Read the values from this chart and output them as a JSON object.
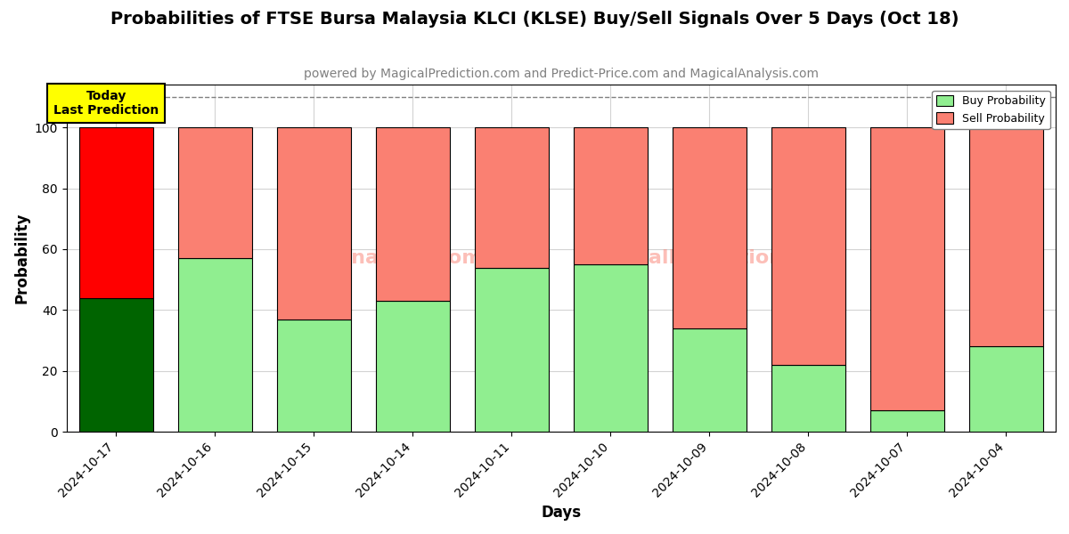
{
  "title": "Probabilities of FTSE Bursa Malaysia KLCI (KLSE) Buy/Sell Signals Over 5 Days (Oct 18)",
  "subtitle": "powered by MagicalPrediction.com and Predict-Price.com and MagicalAnalysis.com",
  "xlabel": "Days",
  "ylabel": "Probability",
  "categories": [
    "2024-10-17",
    "2024-10-16",
    "2024-10-15",
    "2024-10-14",
    "2024-10-11",
    "2024-10-10",
    "2024-10-09",
    "2024-10-08",
    "2024-10-07",
    "2024-10-04"
  ],
  "buy_values": [
    44,
    57,
    37,
    43,
    54,
    55,
    34,
    22,
    7,
    28
  ],
  "sell_values": [
    56,
    43,
    63,
    57,
    46,
    45,
    66,
    78,
    93,
    72
  ],
  "today_bar_buy_color": "#006400",
  "today_bar_sell_color": "#FF0000",
  "other_bar_buy_color": "#90EE90",
  "other_bar_sell_color": "#FA8072",
  "ylim": [
    0,
    114
  ],
  "yticks": [
    0,
    20,
    40,
    60,
    80,
    100
  ],
  "dashed_line_y": 110,
  "legend_buy_label": "Buy Probability",
  "legend_sell_label": "Sell Probability",
  "today_label_text": "Today\nLast Prediction",
  "today_label_fontsize": 10,
  "title_fontsize": 14,
  "subtitle_fontsize": 10,
  "axis_label_fontsize": 12,
  "tick_fontsize": 10,
  "bar_width": 0.75
}
